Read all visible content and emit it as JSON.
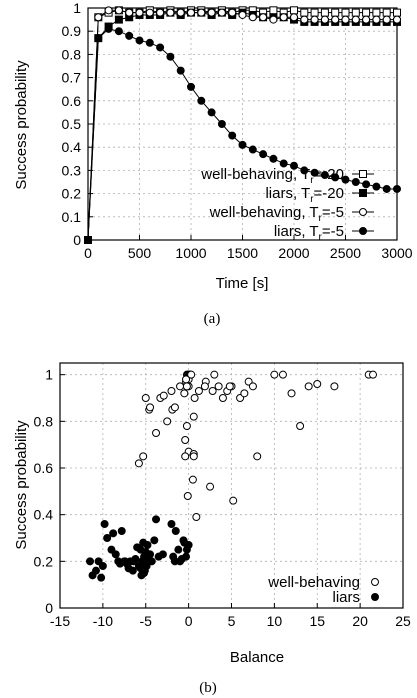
{
  "chart_data": [
    {
      "type": "line",
      "caption": "(a)",
      "xlabel": "Time [s]",
      "ylabel": "Success probability",
      "xlim": [
        0,
        3000
      ],
      "ylim": [
        0,
        1
      ],
      "xticks": [
        0,
        500,
        1000,
        1500,
        2000,
        2500,
        3000
      ],
      "yticks": [
        0,
        0.1,
        0.2,
        0.3,
        0.4,
        0.5,
        0.6,
        0.7,
        0.8,
        0.9,
        1
      ],
      "grid": true,
      "legend_position": "bottom-left",
      "series": [
        {
          "name": "well-behaving, T_r=-20",
          "marker": "open-square",
          "x": [
            0,
            100,
            200,
            300,
            400,
            500,
            600,
            700,
            800,
            900,
            1000,
            1100,
            1200,
            1300,
            1400,
            1500,
            1600,
            1700,
            1800,
            1900,
            2000,
            2100,
            2200,
            2300,
            2400,
            2500,
            2600,
            2700,
            2800,
            2900,
            3000
          ],
          "y": [
            0,
            0.96,
            0.98,
            0.99,
            0.98,
            0.98,
            0.99,
            0.98,
            0.99,
            0.98,
            0.99,
            0.99,
            0.98,
            0.99,
            0.98,
            0.99,
            0.99,
            0.98,
            0.99,
            0.98,
            0.99,
            0.98,
            0.98,
            0.98,
            0.98,
            0.98,
            0.98,
            0.98,
            0.98,
            0.98,
            0.98
          ]
        },
        {
          "name": "liars, T_r=-20",
          "marker": "filled-square",
          "x": [
            0,
            100,
            200,
            300,
            400,
            500,
            600,
            700,
            800,
            900,
            1000,
            1100,
            1200,
            1300,
            1400,
            1500,
            1600,
            1700,
            1800,
            1900,
            2000,
            2100,
            2200,
            2300,
            2400,
            2500,
            2600,
            2700,
            2800,
            2900,
            3000
          ],
          "y": [
            0,
            0.87,
            0.92,
            0.95,
            0.96,
            0.97,
            0.97,
            0.97,
            0.98,
            0.97,
            0.98,
            0.98,
            0.97,
            0.98,
            0.97,
            0.98,
            0.97,
            0.96,
            0.96,
            0.96,
            0.95,
            0.94,
            0.94,
            0.94,
            0.94,
            0.94,
            0.94,
            0.94,
            0.94,
            0.94,
            0.94
          ]
        },
        {
          "name": "well-behaving, T_r=-5",
          "marker": "open-circle",
          "x": [
            0,
            100,
            200,
            300,
            400,
            500,
            600,
            700,
            800,
            900,
            1000,
            1100,
            1200,
            1300,
            1400,
            1500,
            1600,
            1700,
            1800,
            1900,
            2000,
            2100,
            2200,
            2300,
            2400,
            2500,
            2600,
            2700,
            2800,
            2900,
            3000
          ],
          "y": [
            0,
            0.96,
            0.99,
            0.99,
            0.98,
            0.98,
            0.98,
            0.98,
            0.98,
            0.98,
            0.98,
            0.98,
            0.98,
            0.98,
            0.98,
            0.97,
            0.96,
            0.96,
            0.95,
            0.96,
            0.96,
            0.95,
            0.95,
            0.95,
            0.95,
            0.95,
            0.95,
            0.95,
            0.95,
            0.95,
            0.95
          ]
        },
        {
          "name": "liars, T_r=-5",
          "marker": "filled-circle",
          "x": [
            0,
            100,
            200,
            300,
            400,
            500,
            600,
            700,
            800,
            900,
            1000,
            1100,
            1200,
            1300,
            1400,
            1500,
            1600,
            1700,
            1800,
            1900,
            2000,
            2100,
            2200,
            2300,
            2400,
            2500,
            2600,
            2700,
            2800,
            2900,
            3000
          ],
          "y": [
            0,
            0.87,
            0.91,
            0.9,
            0.88,
            0.86,
            0.85,
            0.83,
            0.79,
            0.73,
            0.66,
            0.6,
            0.55,
            0.5,
            0.45,
            0.41,
            0.39,
            0.37,
            0.35,
            0.33,
            0.32,
            0.3,
            0.29,
            0.28,
            0.27,
            0.26,
            0.25,
            0.24,
            0.23,
            0.22,
            0.22
          ]
        }
      ]
    },
    {
      "type": "scatter",
      "caption": "(b)",
      "xlabel": "Balance",
      "ylabel": "Success probability",
      "xlim": [
        -15,
        25
      ],
      "ylim": [
        0,
        1.05
      ],
      "xticks": [
        -15,
        -10,
        -5,
        0,
        5,
        10,
        15,
        20,
        25
      ],
      "yticks": [
        0,
        0.2,
        0.4,
        0.6,
        0.8,
        1
      ],
      "grid": true,
      "legend_position": "bottom-right",
      "series": [
        {
          "name": "well-behaving",
          "marker": "open-circle",
          "x": [
            -5,
            -4.6,
            -4.5,
            -3.8,
            -3.3,
            -2.9,
            -2.5,
            -2,
            -1.9,
            -1.6,
            -1,
            -0.5,
            -0.3,
            -0.2,
            -0.1,
            0,
            0,
            0,
            0.1,
            0.2,
            0.3,
            -0.4,
            -0.2,
            0,
            0.6,
            0.6,
            0.6,
            0.7,
            1.2,
            2,
            2.5,
            3,
            3.5,
            4,
            4.5,
            5,
            5.2,
            6,
            6.5,
            7,
            7.5,
            8,
            10,
            11,
            12,
            13,
            14,
            15,
            17,
            21,
            21.5,
            -5.8,
            -5.3,
            -0.1,
            0.5,
            -0.3,
            -0.2,
            -0.4,
            0.9,
            1.9,
            2.8,
            4.8
          ],
          "y": [
            0.9,
            0.85,
            0.86,
            0.75,
            0.9,
            0.91,
            0.8,
            0.93,
            0.85,
            0.86,
            0.95,
            0.92,
            0.97,
            1,
            1,
            1,
            0.98,
            0.95,
            1,
            1,
            1,
            0.72,
            0.78,
            0.67,
            0.66,
            0.65,
            0.82,
            0.9,
            0.93,
            0.97,
            0.52,
            1,
            0.95,
            0.9,
            0.93,
            0.95,
            0.46,
            0.9,
            0.92,
            0.97,
            0.95,
            0.65,
            1,
            1,
            0.92,
            0.78,
            0.95,
            0.96,
            0.95,
            1,
            1,
            0.62,
            0.65,
            0.48,
            0.55,
            0.98,
            0.95,
            0.65,
            0.39,
            0.95,
            0.93,
            0.95
          ]
        },
        {
          "name": "liars",
          "marker": "filled-circle",
          "x": [
            -11.5,
            -11.2,
            -10.8,
            -10.5,
            -10.2,
            -10,
            -9.8,
            -9.5,
            -9,
            -8.8,
            -8.5,
            -8.2,
            -8,
            -7.8,
            -7.5,
            -7.2,
            -7,
            -6.8,
            -6.5,
            -6.2,
            -6,
            -5.8,
            -5.6,
            -5.5,
            -5.4,
            -5.3,
            -5.2,
            -5.1,
            -5,
            -4.9,
            -4.8,
            -4.7,
            -4.5,
            -4.3,
            -4,
            -3.8,
            -3.5,
            -3,
            -2,
            -1.8,
            -1.5,
            -1.2,
            -1,
            -0.8,
            -0.5,
            -0.3,
            -0.2,
            0,
            -1.6,
            -0.6,
            -5.6,
            -5.2,
            -4.9,
            -6.4,
            -7.4
          ],
          "y": [
            0.2,
            0.14,
            0.16,
            0.2,
            0.13,
            0.18,
            0.36,
            0.3,
            0.25,
            0.32,
            0.23,
            0.2,
            0.19,
            0.33,
            0.2,
            0.19,
            0.17,
            0.2,
            0.16,
            0.21,
            0.26,
            0.18,
            0.25,
            0.14,
            0.2,
            0.28,
            0.22,
            0.16,
            0.24,
            0.18,
            0.27,
            0.21,
            0.23,
            0.2,
            0.29,
            0.38,
            0.22,
            0.23,
            0.36,
            0.22,
            0.33,
            0.25,
            0.2,
            0.21,
            0.28,
            0.22,
            0.25,
            0.27,
            0.2,
            0.29,
            0.17,
            0.15,
            0.19,
            0.2,
            0.2
          ]
        }
      ]
    }
  ]
}
